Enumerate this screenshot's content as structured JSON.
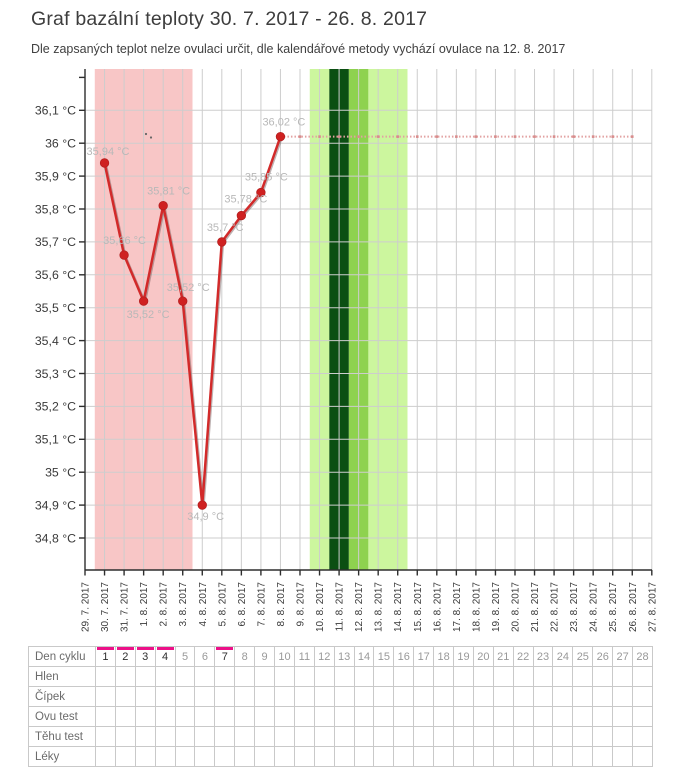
{
  "header": {
    "title": "Graf bazální teploty 30. 7. 2017 - 26. 8. 2017",
    "subtitle": "Dle zapsaných teplot nelze ovulaci určit, dle kalendářové metody vychází ovulace na 12. 8. 2017"
  },
  "chart_data": {
    "type": "line",
    "title": "Graf bazální teploty 30. 7. 2017 - 26. 8. 2017",
    "ylabel": "",
    "xlabel": "",
    "ylim": [
      34.7,
      36.22
    ],
    "grid": true,
    "x_labels": [
      "29. 7. 2017",
      "30. 7. 2017",
      "31. 7. 2017",
      "1. 8. 2017",
      "2. 8. 2017",
      "3. 8. 2017",
      "4. 8. 2017",
      "5. 8. 2017",
      "6. 8. 2017",
      "7. 8. 2017",
      "8. 8. 2017",
      "9. 8. 2017",
      "10. 8. 2017",
      "11. 8. 2017",
      "12. 8. 2017",
      "13. 8. 2017",
      "14. 8. 2017",
      "15. 8. 2017",
      "16. 8. 2017",
      "17. 8. 2017",
      "18. 8. 2017",
      "19. 8. 2017",
      "20. 8. 2017",
      "21. 8. 2017",
      "22. 8. 2017",
      "23. 8. 2017",
      "24. 8. 2017",
      "25. 8. 2017",
      "26. 8. 2017",
      "27. 8. 2017"
    ],
    "y_ticks": [
      {
        "value": 34.8,
        "label": "34,8 °C"
      },
      {
        "value": 34.9,
        "label": "34,9 °C"
      },
      {
        "value": 35.0,
        "label": "35 °C"
      },
      {
        "value": 35.1,
        "label": "35,1 °C"
      },
      {
        "value": 35.2,
        "label": "35,2 °C"
      },
      {
        "value": 35.3,
        "label": "35,3 °C"
      },
      {
        "value": 35.4,
        "label": "35,4 °C"
      },
      {
        "value": 35.5,
        "label": "35,5 °C"
      },
      {
        "value": 35.6,
        "label": "35,6 °C"
      },
      {
        "value": 35.7,
        "label": "35,7 °C"
      },
      {
        "value": 35.8,
        "label": "35,8 °C"
      },
      {
        "value": 35.9,
        "label": "35,9 °C"
      },
      {
        "value": 36.0,
        "label": "36 °C"
      },
      {
        "value": 36.1,
        "label": "36,1 °C"
      }
    ],
    "series": [
      {
        "name": "bazální teplota",
        "color": "#d22a2a",
        "point_color": "#cf2121",
        "label_color": "#b8b8b8",
        "points": [
          {
            "date": "30. 7. 2017",
            "value": 35.94,
            "label": "35,94 °C",
            "label_dx": -18,
            "label_dy": -8
          },
          {
            "date": "31. 7. 2017",
            "value": 35.66,
            "label": "35,66 °C",
            "label_dx": -21,
            "label_dy": -11
          },
          {
            "date": "1. 8. 2017",
            "value": 35.52,
            "label": "35,52 °C",
            "label_dx": -17,
            "label_dy": 17
          },
          {
            "date": "2. 8. 2017",
            "value": 35.81,
            "label": "35,81 °C",
            "label_dx": -16,
            "label_dy": -11
          },
          {
            "date": "3. 8. 2017",
            "value": 35.52,
            "label": "35,52 °C",
            "label_dx": -16,
            "label_dy": -10
          },
          {
            "date": "4. 8. 2017",
            "value": 34.9,
            "label": "34,9 °C",
            "label_dx": -15,
            "label_dy": 15
          },
          {
            "date": "5. 8. 2017",
            "value": 35.7,
            "label": "35,7 °C",
            "label_dx": -15,
            "label_dy": -11
          },
          {
            "date": "6. 8. 2017",
            "value": 35.78,
            "label": "35,78 °C",
            "label_dx": -17,
            "label_dy": -13
          },
          {
            "date": "7. 8. 2017",
            "value": 35.85,
            "label": "35,85 °C",
            "label_dx": -16,
            "label_dy": -12
          },
          {
            "date": "8. 8. 2017",
            "value": 36.02,
            "label": "36,02 °C",
            "label_dx": -18,
            "label_dy": -11
          }
        ]
      }
    ],
    "reference_line": {
      "value": 36.02,
      "from": "8. 8. 2017",
      "to": "26. 8. 2017",
      "color": "#e2a2a2",
      "marker_color": "#d98c8c"
    },
    "bands": [
      {
        "name": "menstruation",
        "from": "30. 7. 2017",
        "to": "3. 8. 2017",
        "color": "#f8c6c6"
      },
      {
        "name": "fertile-light-start",
        "from": "10. 8. 2017",
        "to": "10. 8. 2017",
        "color": "#ccf69e"
      },
      {
        "name": "fertile-dark",
        "from": "11. 8. 2017",
        "to": "11. 8. 2017",
        "color": "#0b4f12"
      },
      {
        "name": "fertile-medium",
        "from": "12. 8. 2017",
        "to": "12. 8. 2017",
        "color": "#8ed24f"
      },
      {
        "name": "fertile-light-end",
        "from": "13. 8. 2017",
        "to": "14. 8. 2017",
        "color": "#ccf69e"
      }
    ],
    "legend": null
  },
  "table": {
    "row_labels": [
      "Den cyklu",
      "Hlen",
      "Čípek",
      "Ovu test",
      "Těhu test",
      "Léky"
    ],
    "days": [
      1,
      2,
      3,
      4,
      5,
      6,
      7,
      8,
      9,
      10,
      11,
      12,
      13,
      14,
      15,
      16,
      17,
      18,
      19,
      20,
      21,
      22,
      23,
      24,
      25,
      26,
      27,
      28
    ],
    "marked_days": [
      1,
      2,
      3,
      4,
      7
    ],
    "marker_color": "#ec1088"
  },
  "colors": {
    "grid": "#cdcdcd",
    "axis": "#2e2e2e",
    "tick_label": "#3a3a3a"
  }
}
